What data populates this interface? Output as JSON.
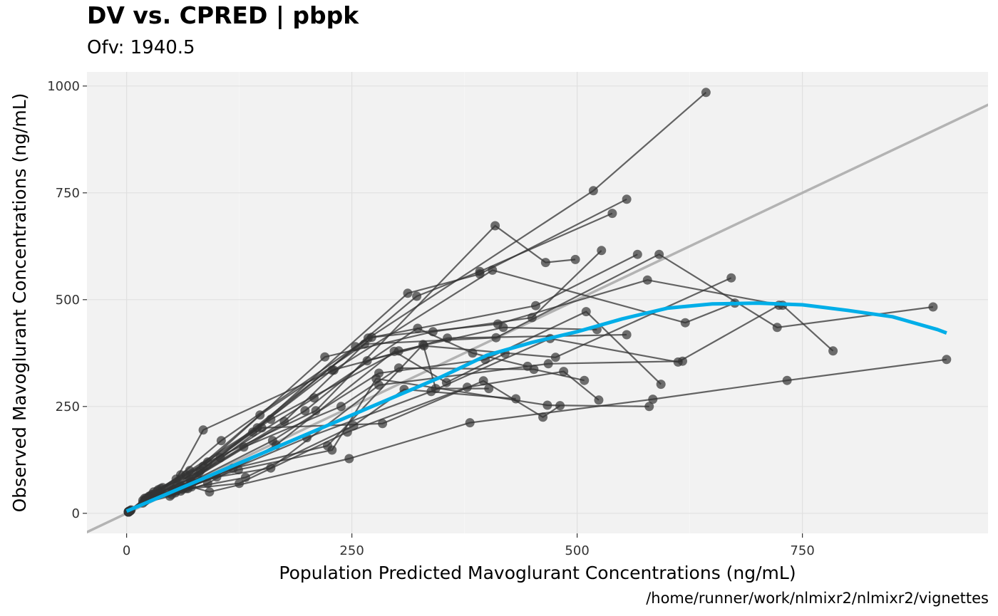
{
  "title": "DV vs. CPRED | pbpk",
  "subtitle": "Ofv: 1940.5",
  "caption": "/home/runner/work/nlmixr2/nlmixr2/vignettes",
  "chart_data": {
    "type": "scatter",
    "title": "DV vs. CPRED | pbpk",
    "subtitle": "Ofv: 1940.5",
    "xlabel": "Population Predicted Mavoglurant Concentrations (ng/mL)",
    "ylabel": "Observed Mavoglurant Concentrations (ng/mL)",
    "xlim": [
      -44,
      956
    ],
    "ylim": [
      -47,
      1033
    ],
    "xticks": [
      0,
      250,
      500,
      750
    ],
    "yticks": [
      0,
      250,
      500,
      750,
      1000
    ],
    "xtick_labels": [
      "0",
      "250",
      "500",
      "750"
    ],
    "ytick_labels": [
      "0",
      "250",
      "500",
      "750",
      "1000"
    ],
    "grid": true,
    "legend": "none",
    "colors": {
      "panel": "#f2f2f2",
      "grid": "#e0e0e0",
      "points": "#333333",
      "identity_line": "#b3b3b3",
      "smooth": "#00aee8"
    },
    "identity_line": {
      "slope": 1,
      "intercept": 0
    },
    "smooth": {
      "x": [
        0,
        50,
        100,
        150,
        200,
        250,
        300,
        350,
        400,
        450,
        500,
        550,
        600,
        650,
        700,
        750,
        800,
        850,
        900,
        910
      ],
      "y": [
        5,
        50,
        95,
        140,
        185,
        230,
        275,
        320,
        370,
        400,
        425,
        455,
        480,
        490,
        492,
        488,
        475,
        460,
        430,
        422
      ]
    },
    "series": [
      {
        "name": "id1",
        "x": [
          3,
          25,
          60,
          105,
          254,
          518,
          643
        ],
        "y": [
          5,
          40,
          90,
          170,
          390,
          755,
          985
        ]
      },
      {
        "name": "id2",
        "x": [
          2,
          20,
          55,
          90,
          210,
          409,
          465,
          498
        ],
        "y": [
          4,
          35,
          80,
          120,
          240,
          673,
          587,
          594
        ]
      },
      {
        "name": "id3",
        "x": [
          4,
          30,
          70,
          145,
          312,
          392,
          555
        ],
        "y": [
          6,
          50,
          100,
          200,
          515,
          560,
          735
        ]
      },
      {
        "name": "id4",
        "x": [
          3,
          28,
          66,
          140,
          322,
          392,
          539
        ],
        "y": [
          5,
          44,
          90,
          190,
          508,
          566,
          702
        ]
      },
      {
        "name": "id5",
        "x": [
          2,
          18,
          50,
          85,
          230,
          406,
          620,
          675
        ],
        "y": [
          3,
          30,
          60,
          195,
          335,
          569,
          446,
          492
        ]
      },
      {
        "name": "id6",
        "x": [
          5,
          40,
          85,
          220,
          340,
          450,
          527
        ],
        "y": [
          8,
          60,
          110,
          366,
          425,
          458,
          615
        ]
      },
      {
        "name": "id7",
        "x": [
          3,
          35,
          82,
          268,
          454,
          567
        ],
        "y": [
          5,
          55,
          100,
          410,
          486,
          606
        ]
      },
      {
        "name": "id8",
        "x": [
          4,
          38,
          80,
          228,
          330,
          476,
          671
        ],
        "y": [
          6,
          58,
          95,
          335,
          392,
          365,
          551
        ]
      },
      {
        "name": "id9",
        "x": [
          2,
          22,
          58,
          148,
          264,
          410,
          591,
          722,
          895
        ],
        "y": [
          3,
          36,
          68,
          230,
          396,
          411,
          606,
          435,
          483
        ]
      },
      {
        "name": "id10",
        "x": [
          3,
          26,
          70,
          175,
          272,
          412,
          578,
          728,
          784
        ],
        "y": [
          5,
          40,
          80,
          215,
          412,
          443,
          546,
          487,
          380
        ]
      },
      {
        "name": "id11",
        "x": [
          2,
          20,
          52,
          160,
          302,
          418,
          522
        ],
        "y": [
          3,
          30,
          55,
          220,
          380,
          435,
          430
        ]
      },
      {
        "name": "id12",
        "x": [
          4,
          34,
          78,
          198,
          267,
          356,
          555
        ],
        "y": [
          6,
          52,
          86,
          240,
          357,
          410,
          418
        ]
      },
      {
        "name": "id13",
        "x": [
          3,
          30,
          72,
          162,
          280,
          398,
          510,
          593
        ],
        "y": [
          5,
          44,
          74,
          170,
          328,
          360,
          472,
          302
        ]
      },
      {
        "name": "id14",
        "x": [
          2,
          24,
          60,
          130,
          238,
          302,
          452,
          508
        ],
        "y": [
          4,
          36,
          64,
          155,
          250,
          340,
          337,
          311
        ]
      },
      {
        "name": "id15",
        "x": [
          3,
          27,
          64,
          124,
          228,
          277,
          467,
          580
        ],
        "y": [
          5,
          40,
          60,
          102,
          148,
          315,
          253,
          250
        ]
      },
      {
        "name": "id16",
        "x": [
          2,
          22,
          55,
          100,
          160,
          280,
          468,
          617
        ],
        "y": [
          3,
          32,
          52,
          85,
          106,
          300,
          350,
          356
        ]
      },
      {
        "name": "id17",
        "x": [
          4,
          30,
          68,
          132,
          252,
          308,
          432
        ],
        "y": [
          6,
          42,
          58,
          84,
          205,
          290,
          268
        ]
      },
      {
        "name": "id18",
        "x": [
          3,
          28,
          62,
          125,
          245,
          378,
          485,
          524
        ],
        "y": [
          5,
          38,
          56,
          70,
          190,
          295,
          332,
          265
        ]
      },
      {
        "name": "id19",
        "x": [
          2,
          21,
          54,
          150,
          284,
          396,
          462,
          481
        ],
        "y": [
          3,
          30,
          48,
          200,
          210,
          310,
          225,
          252
        ]
      },
      {
        "name": "id20",
        "x": [
          3,
          26,
          66,
          200,
          338,
          470,
          612,
          724
        ],
        "y": [
          5,
          38,
          58,
          177,
          285,
          409,
          354,
          487
        ]
      },
      {
        "name": "id21",
        "x": [
          4,
          32,
          72,
          92,
          247,
          381,
          584,
          733,
          910
        ],
        "y": [
          6,
          44,
          62,
          50,
          128,
          212,
          267,
          311,
          360
        ]
      },
      {
        "name": "id22",
        "x": [
          2,
          20,
          50,
          104,
          208,
          323,
          384,
          445
        ],
        "y": [
          3,
          28,
          44,
          130,
          270,
          433,
          375,
          344
        ]
      },
      {
        "name": "id23",
        "x": [
          3,
          25,
          60,
          118,
          223,
          329,
          343,
          402
        ],
        "y": [
          4,
          35,
          52,
          105,
          158,
          395,
          292,
          292
        ]
      },
      {
        "name": "id24",
        "x": [
          2,
          18,
          48,
          90,
          166,
          297,
          355,
          420
        ],
        "y": [
          3,
          24,
          40,
          70,
          160,
          379,
          306,
          374
        ]
      }
    ]
  }
}
